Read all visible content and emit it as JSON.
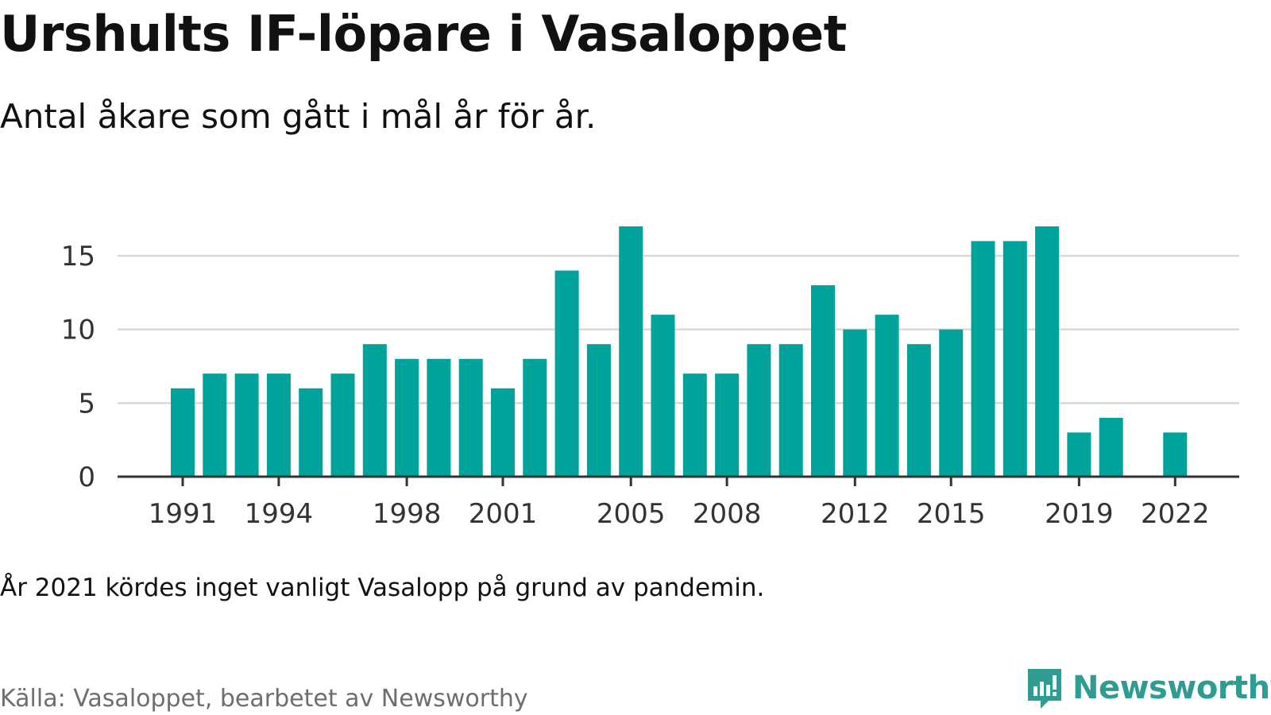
{
  "title": "Urshults IF-löpare i Vasaloppet",
  "subtitle": "Antal åkare som gått i mål år för år.",
  "note": "År 2021 kördes inget vanligt Vasalopp på grund av pandemin.",
  "source": "Källa: Vasaloppet, bearbetet av Newsworthy",
  "brand": {
    "name": "Newsworthy",
    "icon": "newsworthy-logo-icon"
  },
  "colors": {
    "bar": "#00a39a",
    "grid": "#d9d9d9",
    "axis": "#333333",
    "brand": "#2f9c91"
  },
  "chart_data": {
    "type": "bar",
    "x": [
      1991,
      1992,
      1993,
      1994,
      1995,
      1996,
      1997,
      1998,
      1999,
      2000,
      2001,
      2002,
      2003,
      2004,
      2005,
      2006,
      2007,
      2008,
      2009,
      2010,
      2011,
      2012,
      2013,
      2014,
      2015,
      2016,
      2017,
      2018,
      2019,
      2020,
      2021,
      2022
    ],
    "values": [
      6,
      7,
      7,
      7,
      6,
      7,
      9,
      8,
      8,
      8,
      6,
      8,
      14,
      9,
      17,
      11,
      7,
      7,
      9,
      9,
      13,
      10,
      11,
      9,
      10,
      16,
      16,
      17,
      3,
      4,
      null,
      3
    ],
    "x_ticks": [
      1991,
      1994,
      1998,
      2001,
      2005,
      2008,
      2012,
      2015,
      2019,
      2022
    ],
    "y_ticks": [
      0,
      5,
      10,
      15
    ],
    "ylim": [
      0,
      17
    ],
    "xlabel": "",
    "ylabel": "",
    "grid": true,
    "legend": "none"
  }
}
